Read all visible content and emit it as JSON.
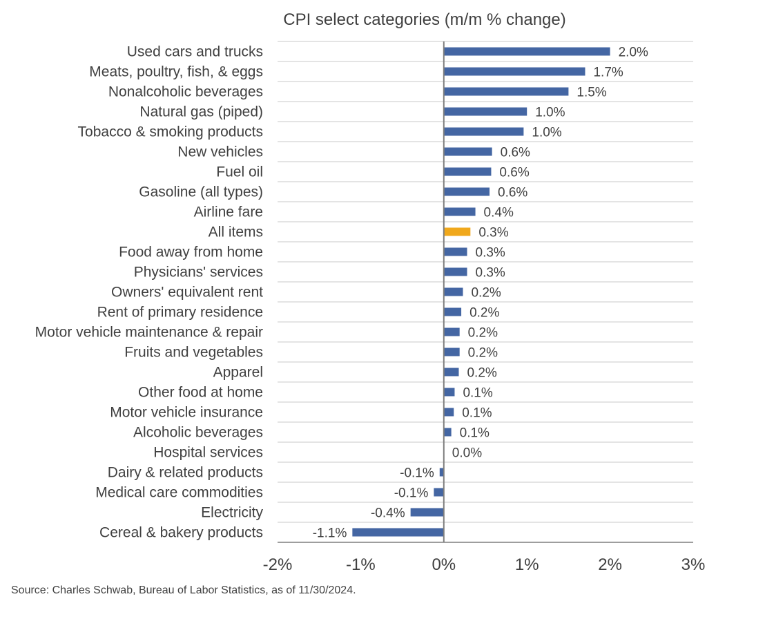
{
  "chart_data": {
    "type": "bar",
    "orientation": "horizontal",
    "title": "CPI select categories (m/m % change)",
    "xlabel": "",
    "ylabel": "",
    "xlim": [
      -2,
      3
    ],
    "xticks": [
      -2,
      -1,
      0,
      1,
      2,
      3
    ],
    "xtick_labels": [
      "-2%",
      "-1%",
      "0%",
      "1%",
      "2%",
      "3%"
    ],
    "grid": "horizontal",
    "categories": [
      "Used cars and trucks",
      "Meats, poultry, fish, & eggs",
      "Nonalcoholic beverages",
      "Natural gas (piped)",
      "Tobacco & smoking products",
      "New vehicles",
      "Fuel oil",
      "Gasoline (all types)",
      "Airline fare",
      "All items",
      "Food away from home",
      "Physicians' services",
      "Owners' equivalent rent",
      "Rent of primary residence",
      "Motor vehicle maintenance & repair",
      "Fruits and vegetables",
      "Apparel",
      "Other food at home",
      "Motor vehicle insurance",
      "Alcoholic beverages",
      "Hospital services",
      "Dairy & related products",
      "Medical care commodities",
      "Electricity",
      "Cereal & bakery products"
    ],
    "values": [
      2.0,
      1.7,
      1.5,
      1.0,
      0.96,
      0.58,
      0.57,
      0.55,
      0.38,
      0.32,
      0.28,
      0.28,
      0.23,
      0.21,
      0.19,
      0.19,
      0.18,
      0.13,
      0.12,
      0.09,
      0.0,
      -0.05,
      -0.12,
      -0.4,
      -1.1
    ],
    "value_labels": [
      "2.0%",
      "1.7%",
      "1.5%",
      "1.0%",
      "1.0%",
      "0.6%",
      "0.6%",
      "0.6%",
      "0.4%",
      "0.3%",
      "0.3%",
      "0.3%",
      "0.2%",
      "0.2%",
      "0.2%",
      "0.2%",
      "0.2%",
      "0.1%",
      "0.1%",
      "0.1%",
      "0.0%",
      "-0.1%",
      "-0.1%",
      "-0.4%",
      "-1.1%"
    ],
    "highlight_category": "All items",
    "colors": {
      "bar": "#4466a3",
      "highlight": "#f0a81c",
      "grid": "#c8c8c8",
      "axis": "#7f7f7f"
    }
  },
  "source": "Source: Charles Schwab, Bureau of Labor Statistics, as of 11/30/2024."
}
